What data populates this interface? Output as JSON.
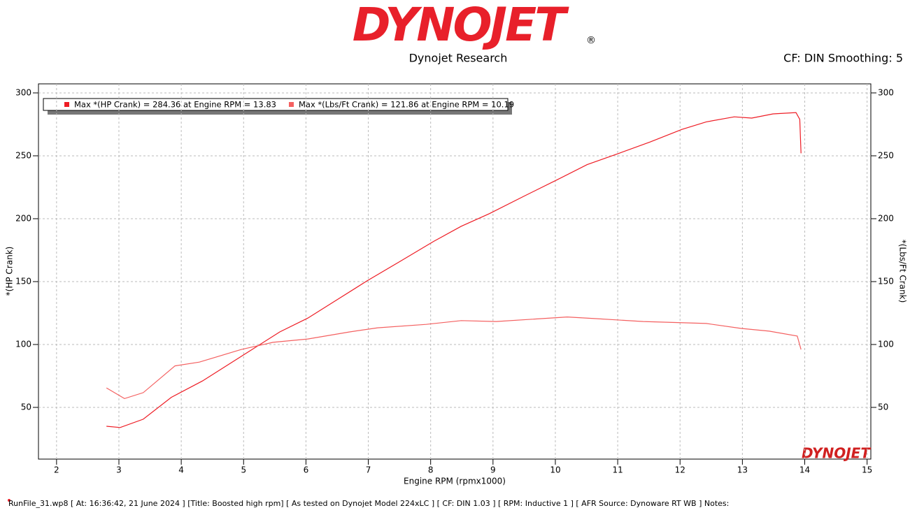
{
  "logo": "DYNOJET",
  "logo_mark": "®",
  "subtitle": "Dynojet Research",
  "settings_text": "CF: DIN Smoothing: 5",
  "footer": "RunFile_31.wp8 [ At: 16:36:42, 21 June 2024 ] [Title: Boosted high rpm]  [ As tested on Dynojet Model 224xLC ] [ CF: DIN 1.03 ] [ RPM: Inductive 1 ] [ AFR Source: Dynoware RT WB ] Notes:",
  "chart_data": {
    "type": "line",
    "xlabel": "Engine RPM (rpmx1000)",
    "ylabel": "*(HP Crank)",
    "y2label": "*(Lbs/Ft  Crank)",
    "watermark": "DYNOJET",
    "grid": true,
    "xlim": [
      1.71,
      15.06
    ],
    "xticks": [
      2,
      3,
      4,
      5,
      6,
      7,
      8,
      9,
      10,
      11,
      12,
      13,
      14,
      15
    ],
    "ylim": [
      8.9,
      307.2
    ],
    "yticks": [
      50,
      100,
      150,
      200,
      250,
      300
    ],
    "y2lim": [
      8.9,
      307.2
    ],
    "y2ticks": [
      50,
      100,
      150,
      200,
      250,
      300
    ],
    "series": [
      {
        "name": "Max *(HP Crank) = 284.36 at Engine RPM = 13.83",
        "color": "#ee1c24",
        "x": [
          2.8,
          3.02,
          3.39,
          3.84,
          4.34,
          4.96,
          5.58,
          6.03,
          6.48,
          6.98,
          7.49,
          8.05,
          8.49,
          8.94,
          9.5,
          10.01,
          10.51,
          11.02,
          11.52,
          12.03,
          12.42,
          12.87,
          13.15,
          13.49,
          13.86,
          13.92,
          13.94
        ],
        "values": [
          35,
          34,
          40.6,
          58,
          71,
          90.5,
          110,
          121,
          135,
          150.6,
          165.5,
          182,
          194,
          204,
          218,
          230.5,
          243,
          252,
          261,
          271,
          277,
          281,
          280,
          283.3,
          284.36,
          279,
          252
        ]
      },
      {
        "name": "Max *(Lbs/Ft  Crank) = 121.86 at Engine RPM = 10.19",
        "color": "#f46060",
        "axis": "y2",
        "x": [
          2.8,
          3.09,
          3.39,
          3.9,
          4.29,
          4.96,
          5.47,
          6.03,
          6.7,
          7.15,
          7.93,
          8.49,
          9.05,
          9.95,
          10.19,
          10.63,
          11.41,
          12.42,
          12.98,
          13.43,
          13.88,
          13.94
        ],
        "values": [
          65.5,
          57,
          61.7,
          83,
          86,
          96,
          101.7,
          104.4,
          110,
          113.3,
          116,
          119,
          118.3,
          121.1,
          121.86,
          120.6,
          118.3,
          116.7,
          112.8,
          110.6,
          106.7,
          96
        ]
      }
    ]
  }
}
